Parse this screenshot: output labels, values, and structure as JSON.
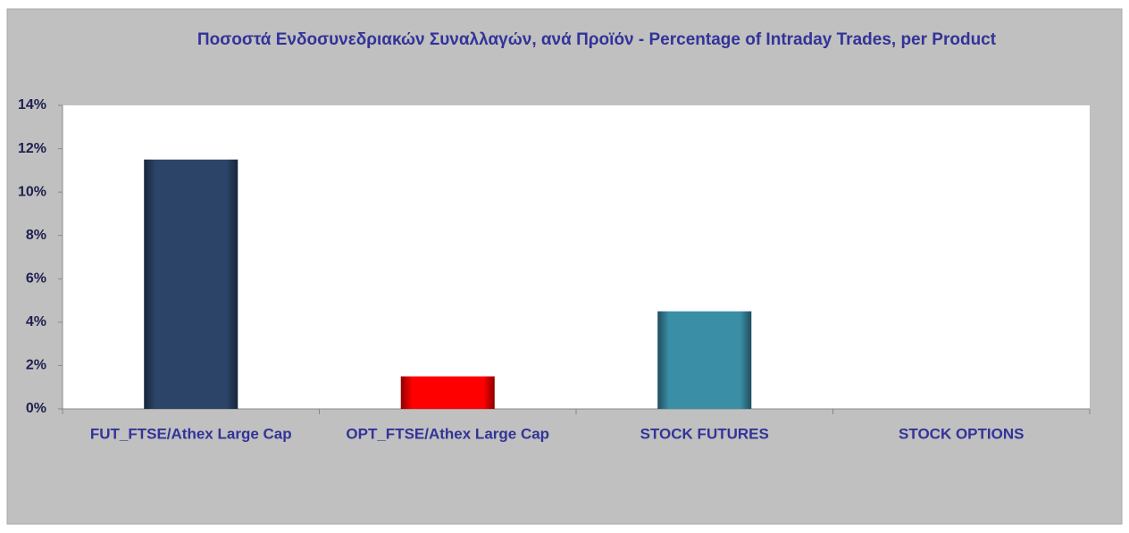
{
  "chart_data": {
    "type": "bar",
    "title": "Ποσοστά Ενδοσυνεδριακών Συναλλαγών, ανά Προϊόν - Percentage of Intraday Trades, per Product",
    "categories": [
      "FUT_FTSE/Athex Large Cap",
      "OPT_FTSE/Athex Large Cap",
      "STOCK FUTURES",
      "STOCK OPTIONS"
    ],
    "values": [
      11.5,
      1.5,
      4.5,
      0
    ],
    "colors": [
      "#2b4468",
      "#ff0000",
      "#3a8ea6",
      "#3a8ea6"
    ],
    "ylim": [
      0,
      14
    ],
    "yticks": [
      {
        "value": 0,
        "label": "0%"
      },
      {
        "value": 2,
        "label": "2%"
      },
      {
        "value": 4,
        "label": "4%"
      },
      {
        "value": 6,
        "label": "6%"
      },
      {
        "value": 8,
        "label": "8%"
      },
      {
        "value": 10,
        "label": "10%"
      },
      {
        "value": 12,
        "label": "12%"
      },
      {
        "value": 14,
        "label": "14%"
      }
    ],
    "grid": false
  }
}
